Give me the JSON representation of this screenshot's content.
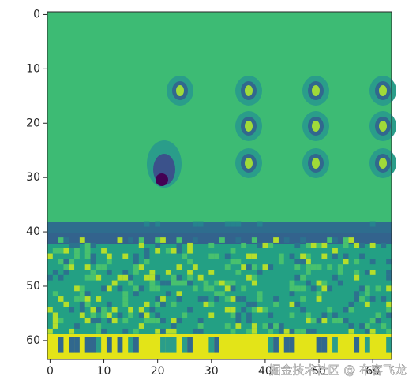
{
  "chart_data": {
    "type": "image",
    "xlim": [
      -0.5,
      63.5
    ],
    "ylim": [
      63.5,
      -0.5
    ],
    "xticks": [
      0,
      10,
      20,
      30,
      40,
      50,
      60
    ],
    "yticks": [
      0,
      10,
      20,
      30,
      40,
      50,
      60
    ]
  },
  "watermark": "掘金技术社区 @ 布客飞龙"
}
